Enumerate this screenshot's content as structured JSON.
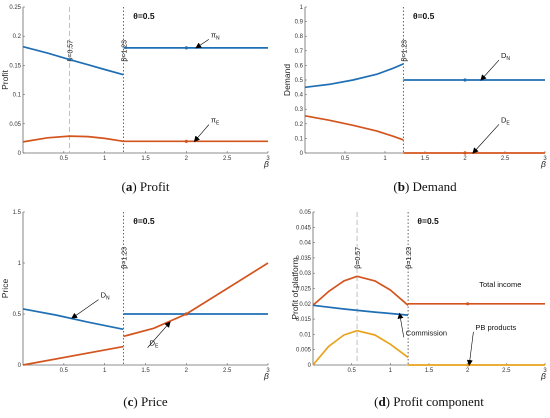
{
  "chart_data": [
    {
      "type": "line",
      "caption_letter": "a",
      "caption_text": " Profit",
      "ylabel": "Profit",
      "xlabel": "β",
      "theta_label": "θ=0.5",
      "xlim": [
        0,
        3
      ],
      "ylim": [
        0,
        0.25
      ],
      "yticks": [
        0,
        0.05,
        0.1,
        0.15,
        0.2,
        0.25
      ],
      "xticks": [
        0.5,
        1,
        1.5,
        2,
        2.5,
        3
      ],
      "cutoffs": [
        {
          "x": 0.57,
          "label": "β=0.57",
          "style": "dashed"
        },
        {
          "x": 1.23,
          "label": "β=1.23",
          "style": "dotted"
        }
      ],
      "series": [
        {
          "name": "π_N",
          "color": "#1f6fb5",
          "points": [
            [
              0,
              0.182
            ],
            [
              0.3,
              0.171
            ],
            [
              0.57,
              0.16
            ],
            [
              0.8,
              0.151
            ],
            [
              1.0,
              0.143
            ],
            [
              1.23,
              0.134
            ]
          ]
        },
        {
          "name": "π_N",
          "color": "#1f6fb5",
          "points": [
            [
              1.23,
              0.18
            ],
            [
              3,
              0.18
            ]
          ],
          "marker_x": 2
        },
        {
          "name": "π_E",
          "color": "#d4541e",
          "points": [
            [
              0,
              0.019
            ],
            [
              0.3,
              0.026
            ],
            [
              0.57,
              0.029
            ],
            [
              0.8,
              0.028
            ],
            [
              1.0,
              0.025
            ],
            [
              1.23,
              0.02
            ]
          ]
        },
        {
          "name": "π_E",
          "color": "#d4541e",
          "points": [
            [
              1.23,
              0.02
            ],
            [
              3,
              0.02
            ]
          ],
          "marker_x": 2
        }
      ],
      "annotations": [
        {
          "main": "π",
          "sub": "N",
          "color": "#1f6fb5",
          "text_at": [
            2.3,
            0.198
          ],
          "arrow_to": [
            2.12,
            0.18
          ]
        },
        {
          "main": "π",
          "sub": "E",
          "color": "#d4541e",
          "text_at": [
            2.3,
            0.052
          ],
          "arrow_to": [
            2.1,
            0.02
          ]
        }
      ]
    },
    {
      "type": "line",
      "caption_letter": "b",
      "caption_text": " Demand",
      "ylabel": "Demand",
      "xlabel": "β",
      "theta_label": "θ=0.5",
      "xlim": [
        0,
        3
      ],
      "ylim": [
        0,
        1
      ],
      "yticks": [
        0,
        0.1,
        0.2,
        0.3,
        0.4,
        0.5,
        0.6,
        0.7,
        0.8,
        0.9,
        1
      ],
      "xticks": [
        0.5,
        1,
        1.5,
        2,
        2.5,
        3
      ],
      "cutoffs": [
        {
          "x": 1.23,
          "label": "β=1.23",
          "style": "dotted"
        }
      ],
      "series": [
        {
          "name": "D_N",
          "color": "#1f6fb5",
          "points": [
            [
              0,
              0.45
            ],
            [
              0.3,
              0.47
            ],
            [
              0.6,
              0.5
            ],
            [
              0.9,
              0.54
            ],
            [
              1.1,
              0.58
            ],
            [
              1.23,
              0.61
            ]
          ]
        },
        {
          "name": "D_N",
          "color": "#1f6fb5",
          "points": [
            [
              1.23,
              0.5
            ],
            [
              3,
              0.5
            ]
          ],
          "marker_x": 2
        },
        {
          "name": "D_E",
          "color": "#d4541e",
          "points": [
            [
              0,
              0.255
            ],
            [
              0.3,
              0.225
            ],
            [
              0.6,
              0.19
            ],
            [
              0.9,
              0.15
            ],
            [
              1.1,
              0.115
            ],
            [
              1.23,
              0.09
            ]
          ]
        },
        {
          "name": "D_E",
          "color": "#d4541e",
          "points": [
            [
              1.23,
              0.0
            ],
            [
              3,
              0.0
            ]
          ],
          "marker_x": 2
        }
      ],
      "annotations": [
        {
          "main": "D",
          "sub": "N",
          "color": "#1f6fb5",
          "text_at": [
            2.45,
            0.65
          ],
          "arrow_to": [
            2.2,
            0.5
          ]
        },
        {
          "main": "D",
          "sub": "E",
          "color": "#d4541e",
          "text_at": [
            2.45,
            0.21
          ],
          "arrow_to": [
            2.1,
            0.0
          ]
        }
      ]
    },
    {
      "type": "line",
      "caption_letter": "c",
      "caption_text": " Price",
      "ylabel": "Price",
      "xlabel": "β",
      "theta_label": "θ=0.5",
      "xlim": [
        0,
        3
      ],
      "ylim": [
        0,
        1.5
      ],
      "yticks": [
        0,
        0.5,
        1,
        1.5
      ],
      "xticks": [
        0.5,
        1,
        1.5,
        2,
        2.5,
        3
      ],
      "cutoffs": [
        {
          "x": 1.23,
          "label": "β=1.23",
          "style": "dotted"
        }
      ],
      "series": [
        {
          "name": "D_N",
          "color": "#1f6fb5",
          "points": [
            [
              0,
              0.55
            ],
            [
              0.4,
              0.49
            ],
            [
              0.8,
              0.42
            ],
            [
              1.23,
              0.35
            ]
          ]
        },
        {
          "name": "D_N",
          "color": "#1f6fb5",
          "points": [
            [
              1.23,
              0.5
            ],
            [
              3,
              0.5
            ]
          ],
          "marker_x": 2
        },
        {
          "name": "D_E",
          "color": "#d4541e",
          "points": [
            [
              0,
              0.0
            ],
            [
              1.23,
              0.18
            ]
          ]
        },
        {
          "name": "D_E",
          "color": "#d4541e",
          "points": [
            [
              1.23,
              0.28
            ],
            [
              1.6,
              0.36
            ],
            [
              2.0,
              0.5
            ],
            [
              2.5,
              0.75
            ],
            [
              3,
              1.0
            ]
          ],
          "marker_x": 2
        }
      ],
      "annotations": [
        {
          "main": "D",
          "sub": "N",
          "color": "#1f6fb5",
          "text_at": [
            0.95,
            0.66
          ],
          "arrow_to": [
            0.6,
            0.46
          ]
        },
        {
          "main": "D",
          "sub": "E",
          "color": "#d4541e",
          "text_at": [
            1.55,
            0.19
          ],
          "arrow_to": [
            1.8,
            0.42
          ]
        }
      ]
    },
    {
      "type": "line",
      "caption_letter": "d",
      "caption_text": " Profit component",
      "ylabel": "Profit of platform",
      "xlabel": "β",
      "theta_label": "θ=0.5",
      "xlim": [
        0,
        3
      ],
      "ylim": [
        0,
        0.05
      ],
      "yticks": [
        0,
        0.005,
        0.01,
        0.015,
        0.02,
        0.025,
        0.03,
        0.035,
        0.04,
        0.045,
        0.05
      ],
      "xticks": [
        0.5,
        1,
        1.5,
        2,
        2.5,
        3
      ],
      "cutoffs": [
        {
          "x": 0.57,
          "label": "β=0.57",
          "style": "dashed"
        },
        {
          "x": 1.23,
          "label": "β=1.23",
          "style": "dotted"
        }
      ],
      "series": [
        {
          "name": "Total income",
          "color": "#d4541e",
          "points": [
            [
              0,
              0.0195
            ],
            [
              0.2,
              0.024
            ],
            [
              0.4,
              0.0275
            ],
            [
              0.57,
              0.029
            ],
            [
              0.8,
              0.0275
            ],
            [
              1.0,
              0.0245
            ],
            [
              1.23,
              0.0195
            ]
          ]
        },
        {
          "name": "Total income",
          "color": "#d4541e",
          "points": [
            [
              1.23,
              0.02
            ],
            [
              3,
              0.02
            ]
          ],
          "marker_x": 2
        },
        {
          "name": "Commission",
          "color": "#1f6fb5",
          "points": [
            [
              0,
              0.0195
            ],
            [
              0.4,
              0.0183
            ],
            [
              0.8,
              0.0173
            ],
            [
              1.23,
              0.0163
            ]
          ]
        },
        {
          "name": "PB products",
          "color": "#e8a31c",
          "points": [
            [
              0,
              0.0
            ],
            [
              0.2,
              0.006
            ],
            [
              0.4,
              0.0098
            ],
            [
              0.57,
              0.0112
            ],
            [
              0.8,
              0.0098
            ],
            [
              1.0,
              0.0068
            ],
            [
              1.23,
              0.0025
            ]
          ]
        },
        {
          "name": "PB products",
          "color": "#e8a31c",
          "points": [
            [
              1.23,
              0.0
            ],
            [
              3,
              0.0
            ]
          ],
          "marker_x": 2
        }
      ],
      "annotations": [
        {
          "main": "Total income",
          "sub": "",
          "color": "#d4541e",
          "text_at": [
            2.15,
            0.0255
          ],
          "arrow_to": null
        },
        {
          "main": "Commission",
          "sub": "",
          "color": "#1f6fb5",
          "text_at": [
            1.2,
            0.0097
          ],
          "arrow_to": [
            1.12,
            0.0168
          ]
        },
        {
          "main": "PB products",
          "sub": "",
          "color": "#e8a31c",
          "text_at": [
            2.1,
            0.0115
          ],
          "arrow_to": [
            2.02,
            0.0
          ]
        }
      ]
    }
  ]
}
